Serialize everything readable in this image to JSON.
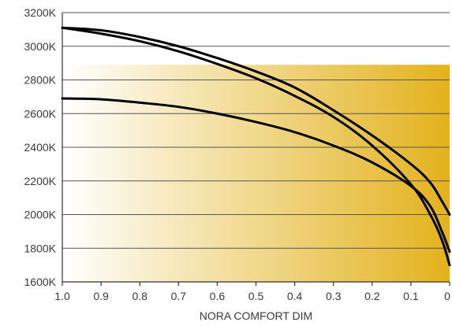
{
  "chart_data": {
    "type": "line",
    "xlabel": "NORA COMFORT DIM",
    "ylabel": "",
    "xlim": [
      1.0,
      0.0
    ],
    "ylim": [
      1600,
      3200
    ],
    "x_ticks": [
      1.0,
      0.9,
      0.8,
      0.7,
      0.6,
      0.5,
      0.4,
      0.3,
      0.2,
      0.1,
      0.0
    ],
    "x_tick_labels": [
      "1.0",
      "0.9",
      "0.8",
      "0.7",
      "0.6",
      "0.5",
      "0.4",
      "0.3",
      "0.2",
      "0.1",
      "0"
    ],
    "y_ticks": [
      1600,
      1800,
      2000,
      2200,
      2400,
      2600,
      2800,
      3000,
      3200
    ],
    "y_tick_labels": [
      "1600K",
      "1800K",
      "2000K",
      "2200K",
      "2400K",
      "2600K",
      "2800K",
      "3000K",
      "3200K"
    ],
    "grid": true,
    "background_band": {
      "y_range": [
        1600,
        2890
      ],
      "gradient_from": "#ffffff",
      "gradient_to": "#e3b21c"
    },
    "series": [
      {
        "color": "#000000",
        "x": [
          1.0,
          0.9,
          0.8,
          0.7,
          0.6,
          0.5,
          0.4,
          0.3,
          0.2,
          0.1,
          0.05,
          0.02,
          0.0
        ],
        "y": [
          3110,
          3095,
          3055,
          3000,
          2930,
          2850,
          2755,
          2620,
          2470,
          2300,
          2190,
          2080,
          2000
        ]
      },
      {
        "color": "#000000",
        "x": [
          1.0,
          0.9,
          0.8,
          0.7,
          0.6,
          0.5,
          0.4,
          0.3,
          0.2,
          0.1,
          0.05,
          0.02,
          0.0
        ],
        "y": [
          3110,
          3075,
          3030,
          2970,
          2895,
          2810,
          2705,
          2580,
          2410,
          2180,
          2000,
          1850,
          1700
        ]
      },
      {
        "color": "#000000",
        "x": [
          1.0,
          0.9,
          0.8,
          0.7,
          0.6,
          0.5,
          0.4,
          0.3,
          0.2,
          0.1,
          0.05,
          0.02,
          0.0
        ],
        "y": [
          2690,
          2685,
          2665,
          2640,
          2600,
          2550,
          2490,
          2410,
          2310,
          2170,
          2050,
          1900,
          1780
        ]
      }
    ]
  }
}
